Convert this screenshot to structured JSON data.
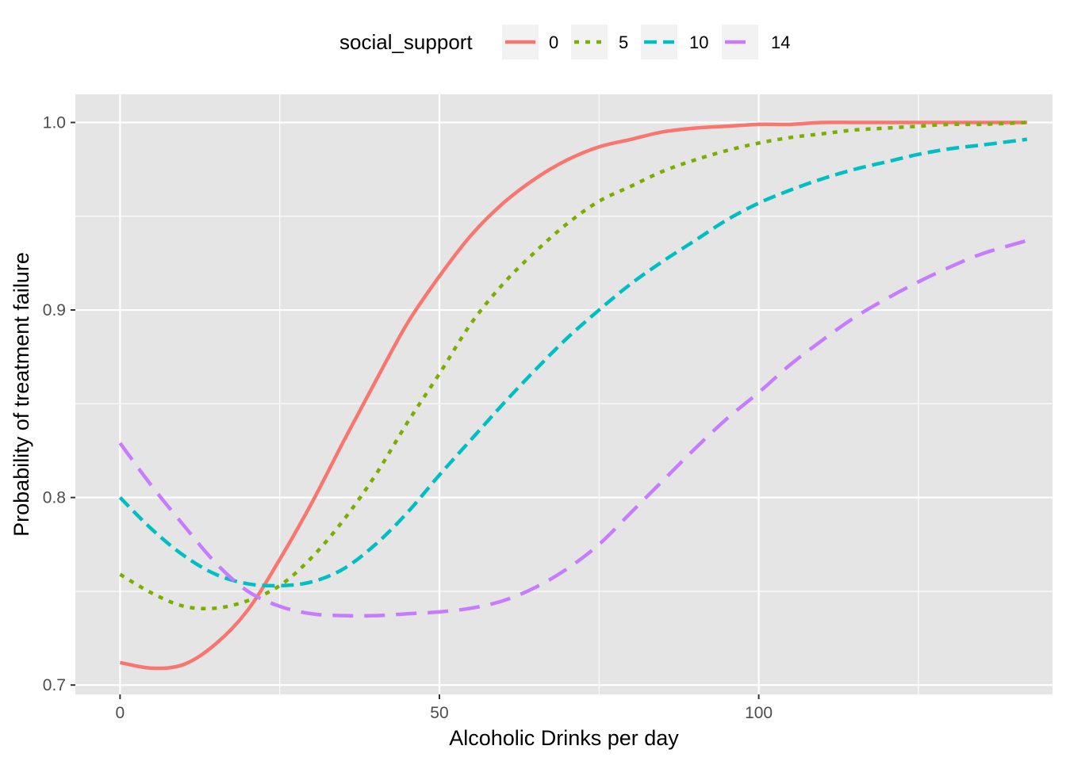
{
  "chart_data": {
    "type": "line",
    "title": "",
    "xlabel": "Alcoholic Drinks per day",
    "ylabel": "Probability of treatment failure",
    "xlim": [
      -7,
      146
    ],
    "ylim": [
      0.695,
      1.015
    ],
    "x_ticks": [
      0,
      50,
      100
    ],
    "x_tick_labels": [
      "0",
      "50",
      "100"
    ],
    "x_minor_ticks": [
      25,
      75,
      125
    ],
    "y_ticks": [
      0.7,
      0.8,
      0.9,
      1.0
    ],
    "y_tick_labels": [
      "0.7",
      "0.8",
      "0.9",
      "1.0"
    ],
    "y_minor_ticks": [
      0.75,
      0.85,
      0.95
    ],
    "grid": true,
    "panel_background": "#e5e5e5",
    "legend": {
      "title": "social_support",
      "position": "top",
      "key_background": "#f2f2f2"
    },
    "x": [
      0,
      5,
      10,
      15,
      20,
      25,
      30,
      35,
      40,
      45,
      50,
      55,
      60,
      65,
      70,
      75,
      80,
      85,
      90,
      95,
      100,
      105,
      110,
      115,
      120,
      125,
      130,
      135,
      142
    ],
    "series": [
      {
        "name": "0",
        "color": "#F8766D",
        "dash": "solid",
        "values": [
          0.712,
          0.709,
          0.711,
          0.722,
          0.74,
          0.767,
          0.797,
          0.83,
          0.862,
          0.893,
          0.918,
          0.94,
          0.957,
          0.97,
          0.98,
          0.987,
          0.991,
          0.995,
          0.997,
          0.998,
          0.999,
          0.999,
          1.0,
          1.0,
          1.0,
          1.0,
          1.0,
          1.0,
          1.0
        ]
      },
      {
        "name": "5",
        "color": "#7CAE00",
        "dash": "dotted",
        "values": [
          0.759,
          0.749,
          0.742,
          0.741,
          0.745,
          0.753,
          0.768,
          0.788,
          0.812,
          0.84,
          0.866,
          0.893,
          0.914,
          0.931,
          0.946,
          0.958,
          0.966,
          0.974,
          0.98,
          0.985,
          0.989,
          0.992,
          0.994,
          0.996,
          0.997,
          0.998,
          0.999,
          0.999,
          1.0
        ]
      },
      {
        "name": "10",
        "color": "#00BFC4",
        "dash": "dashed",
        "values": [
          0.8,
          0.783,
          0.769,
          0.759,
          0.754,
          0.753,
          0.755,
          0.762,
          0.775,
          0.792,
          0.812,
          0.831,
          0.85,
          0.868,
          0.885,
          0.9,
          0.914,
          0.926,
          0.937,
          0.948,
          0.957,
          0.964,
          0.97,
          0.975,
          0.979,
          0.983,
          0.986,
          0.988,
          0.991
        ]
      },
      {
        "name": "14",
        "color": "#C77CFF",
        "dash": "longdash",
        "values": [
          0.829,
          0.806,
          0.785,
          0.765,
          0.75,
          0.742,
          0.738,
          0.737,
          0.737,
          0.738,
          0.739,
          0.741,
          0.745,
          0.752,
          0.762,
          0.775,
          0.792,
          0.809,
          0.826,
          0.842,
          0.856,
          0.871,
          0.884,
          0.896,
          0.906,
          0.915,
          0.923,
          0.93,
          0.937
        ]
      }
    ]
  }
}
